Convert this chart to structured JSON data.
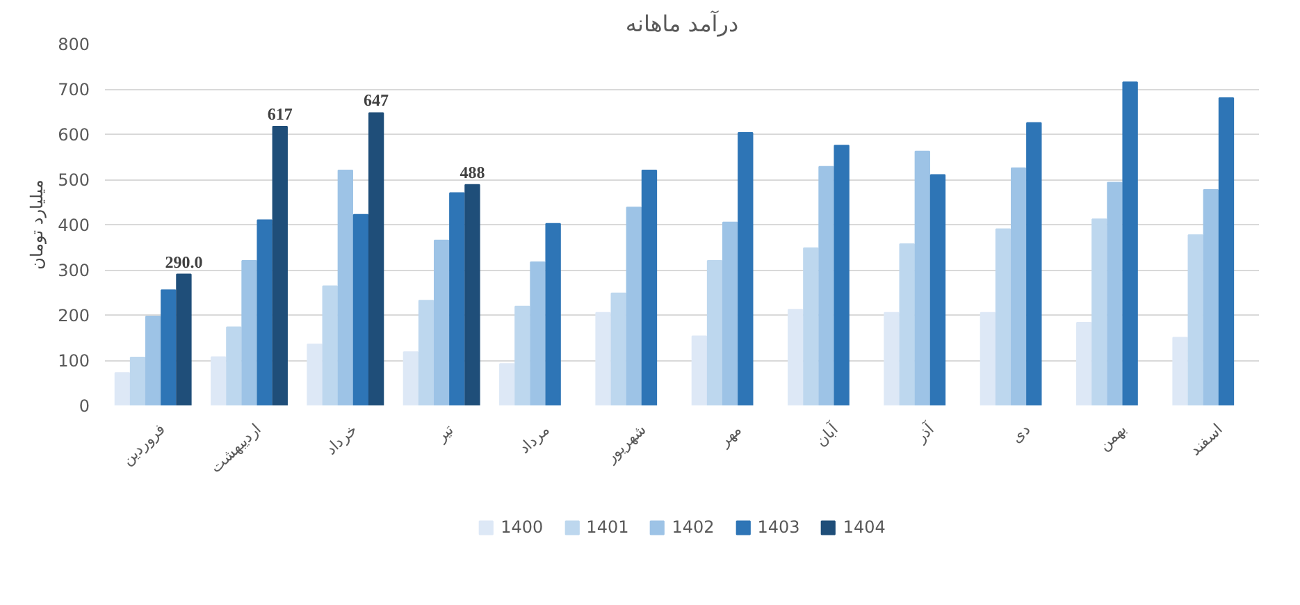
{
  "chart_data": {
    "type": "bar",
    "title": "درآمد ماهانه",
    "ylabel": "میلیارد تومان",
    "categories": [
      "فروردین",
      "اردیبهشت",
      "خرداد",
      "تیر",
      "مرداد",
      "شهریور",
      "مهر",
      "آبان",
      "آذر",
      "دی",
      "بهمن",
      "اسفند"
    ],
    "series": [
      {
        "name": "1400",
        "color": "#dde8f6",
        "values": [
          72,
          107,
          135,
          118,
          92,
          205,
          153,
          212,
          205,
          205,
          183,
          150
        ]
      },
      {
        "name": "1401",
        "color": "#bdd7ee",
        "values": [
          106,
          173,
          264,
          232,
          219,
          248,
          320,
          348,
          357,
          390,
          412,
          377
        ]
      },
      {
        "name": "1402",
        "color": "#9dc3e6",
        "values": [
          197,
          320,
          520,
          365,
          317,
          438,
          405,
          528,
          562,
          525,
          493,
          477
        ]
      },
      {
        "name": "1403",
        "color": "#2e75b6",
        "values": [
          255,
          410,
          422,
          470,
          402,
          520,
          603,
          575,
          510,
          625,
          715,
          680
        ]
      },
      {
        "name": "1404",
        "color": "#1f4e79",
        "values": [
          290,
          617,
          647,
          488,
          null,
          null,
          null,
          null,
          null,
          null,
          null,
          null
        ],
        "value_labels": [
          "290.0",
          "617",
          "647",
          "488",
          null,
          null,
          null,
          null,
          null,
          null,
          null,
          null
        ]
      }
    ],
    "ylim": [
      0,
      800
    ],
    "yticks": [
      0,
      100,
      200,
      300,
      400,
      500,
      600,
      700,
      800
    ],
    "grid": "y",
    "legend": "bottom"
  }
}
